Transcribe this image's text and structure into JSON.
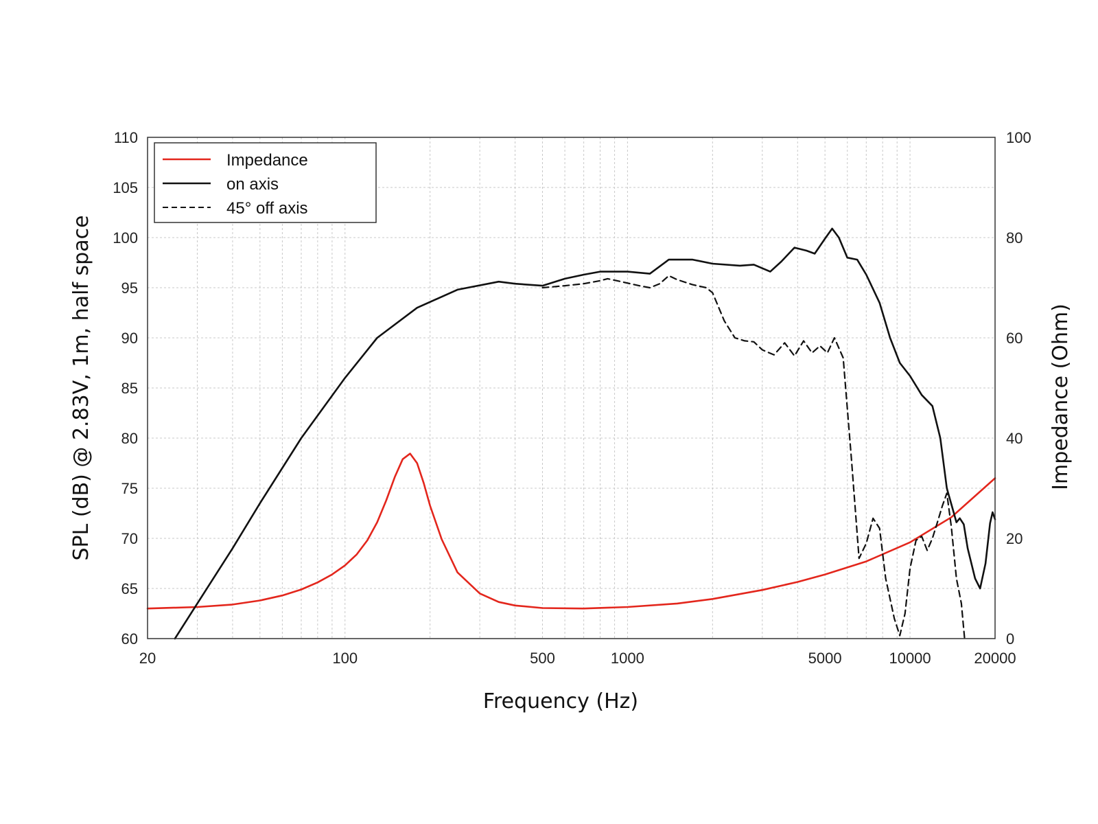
{
  "chart_data": {
    "type": "line",
    "xscale": "log",
    "xlim": [
      20,
      20000
    ],
    "ylim": [
      60,
      110
    ],
    "y2lim": [
      0,
      100
    ],
    "xlabel": "Frequency (Hz)",
    "ylabel": "SPL (dB) @ 2.83V, 1m, half space",
    "y2label": "Impedance (Ohm)",
    "xticks": [
      {
        "value": 20,
        "label": "20"
      },
      {
        "value": 100,
        "label": "100"
      },
      {
        "value": 500,
        "label": "500"
      },
      {
        "value": 1000,
        "label": "1000"
      },
      {
        "value": 5000,
        "label": "5000"
      },
      {
        "value": 10000,
        "label": "10000"
      },
      {
        "value": 20000,
        "label": "20000"
      }
    ],
    "yticks": [
      {
        "value": 60,
        "label": "60"
      },
      {
        "value": 65,
        "label": "65"
      },
      {
        "value": 70,
        "label": "70"
      },
      {
        "value": 75,
        "label": "75"
      },
      {
        "value": 80,
        "label": "80"
      },
      {
        "value": 85,
        "label": "85"
      },
      {
        "value": 90,
        "label": "90"
      },
      {
        "value": 95,
        "label": "95"
      },
      {
        "value": 100,
        "label": "100"
      },
      {
        "value": 105,
        "label": "105"
      },
      {
        "value": 110,
        "label": "110"
      }
    ],
    "y2ticks": [
      {
        "value": 0,
        "label": "0"
      },
      {
        "value": 20,
        "label": "20"
      },
      {
        "value": 40,
        "label": "40"
      },
      {
        "value": 60,
        "label": "60"
      },
      {
        "value": 80,
        "label": "80"
      },
      {
        "value": 100,
        "label": "100"
      }
    ],
    "grid": true,
    "legend_position": "top-left",
    "series": [
      {
        "name": "Impedance",
        "axis": "right",
        "color": "#e3261c",
        "dash": "solid",
        "points": [
          [
            20,
            6
          ],
          [
            30,
            6.3
          ],
          [
            40,
            6.8
          ],
          [
            50,
            7.6
          ],
          [
            60,
            8.6
          ],
          [
            70,
            9.8
          ],
          [
            80,
            11.2
          ],
          [
            90,
            12.8
          ],
          [
            100,
            14.6
          ],
          [
            110,
            16.8
          ],
          [
            120,
            19.6
          ],
          [
            130,
            23.2
          ],
          [
            140,
            27.6
          ],
          [
            150,
            32.2
          ],
          [
            160,
            35.8
          ],
          [
            170,
            36.9
          ],
          [
            180,
            35
          ],
          [
            190,
            31
          ],
          [
            200,
            26.5
          ],
          [
            220,
            19.8
          ],
          [
            250,
            13.2
          ],
          [
            300,
            9
          ],
          [
            350,
            7.3
          ],
          [
            400,
            6.6
          ],
          [
            500,
            6.1
          ],
          [
            700,
            6
          ],
          [
            1000,
            6.3
          ],
          [
            1500,
            7
          ],
          [
            2000,
            7.9
          ],
          [
            3000,
            9.7
          ],
          [
            4000,
            11.3
          ],
          [
            5000,
            12.8
          ],
          [
            7000,
            15.4
          ],
          [
            10000,
            19.2
          ],
          [
            14000,
            24.2
          ],
          [
            20000,
            32
          ]
        ]
      },
      {
        "name": "on axis",
        "axis": "left",
        "color": "#111111",
        "dash": "solid",
        "points": [
          [
            25,
            60
          ],
          [
            30,
            63.5
          ],
          [
            40,
            69
          ],
          [
            50,
            73.5
          ],
          [
            70,
            80
          ],
          [
            100,
            86
          ],
          [
            130,
            90
          ],
          [
            180,
            93
          ],
          [
            250,
            94.8
          ],
          [
            350,
            95.6
          ],
          [
            400,
            95.4
          ],
          [
            500,
            95.2
          ],
          [
            600,
            95.9
          ],
          [
            700,
            96.3
          ],
          [
            800,
            96.6
          ],
          [
            1000,
            96.6
          ],
          [
            1200,
            96.4
          ],
          [
            1400,
            97.8
          ],
          [
            1700,
            97.8
          ],
          [
            2000,
            97.4
          ],
          [
            2500,
            97.2
          ],
          [
            2800,
            97.3
          ],
          [
            3200,
            96.6
          ],
          [
            3500,
            97.6
          ],
          [
            3900,
            99
          ],
          [
            4300,
            98.7
          ],
          [
            4600,
            98.4
          ],
          [
            5000,
            99.9
          ],
          [
            5300,
            100.9
          ],
          [
            5600,
            100
          ],
          [
            6000,
            98
          ],
          [
            6500,
            97.8
          ],
          [
            7000,
            96.3
          ],
          [
            7800,
            93.5
          ],
          [
            8500,
            90
          ],
          [
            9200,
            87.5
          ],
          [
            10000,
            86.2
          ],
          [
            11000,
            84.3
          ],
          [
            12000,
            83.2
          ],
          [
            12800,
            80
          ],
          [
            13500,
            75
          ],
          [
            14200,
            72.8
          ],
          [
            14600,
            71.6
          ],
          [
            15000,
            72
          ],
          [
            15500,
            71.4
          ],
          [
            16000,
            69
          ],
          [
            17000,
            66
          ],
          [
            17700,
            65
          ],
          [
            18500,
            67.5
          ],
          [
            19200,
            71.5
          ],
          [
            19600,
            72.6
          ],
          [
            20000,
            71.9
          ]
        ]
      },
      {
        "name": "45° off axis",
        "axis": "left",
        "color": "#111111",
        "dash": "dashed",
        "points": [
          [
            500,
            95
          ],
          [
            600,
            95.2
          ],
          [
            700,
            95.4
          ],
          [
            800,
            95.7
          ],
          [
            850,
            95.9
          ],
          [
            950,
            95.6
          ],
          [
            1100,
            95.2
          ],
          [
            1200,
            95
          ],
          [
            1300,
            95.4
          ],
          [
            1400,
            96.2
          ],
          [
            1500,
            95.8
          ],
          [
            1700,
            95.3
          ],
          [
            1900,
            95
          ],
          [
            2000,
            94.5
          ],
          [
            2200,
            91.7
          ],
          [
            2400,
            90
          ],
          [
            2600,
            89.7
          ],
          [
            2800,
            89.6
          ],
          [
            3000,
            88.8
          ],
          [
            3300,
            88.3
          ],
          [
            3600,
            89.5
          ],
          [
            3900,
            88.2
          ],
          [
            4200,
            89.7
          ],
          [
            4500,
            88.5
          ],
          [
            4800,
            89.2
          ],
          [
            5100,
            88.5
          ],
          [
            5400,
            90
          ],
          [
            5800,
            88
          ],
          [
            6200,
            78
          ],
          [
            6600,
            68
          ],
          [
            7000,
            69.5
          ],
          [
            7400,
            72
          ],
          [
            7800,
            71
          ],
          [
            8200,
            66
          ],
          [
            8800,
            62
          ],
          [
            9200,
            60.3
          ],
          [
            9600,
            62.5
          ],
          [
            10000,
            67
          ],
          [
            10500,
            69.8
          ],
          [
            11000,
            70.2
          ],
          [
            11500,
            68.8
          ],
          [
            12000,
            70
          ],
          [
            12500,
            71.6
          ],
          [
            13000,
            73.2
          ],
          [
            13500,
            74.5
          ],
          [
            14000,
            71.2
          ],
          [
            14600,
            66
          ],
          [
            15200,
            63.5
          ],
          [
            15600,
            60
          ]
        ]
      }
    ]
  },
  "legend": {
    "items": [
      {
        "label": "Impedance",
        "color": "#e3261c",
        "dash": "solid"
      },
      {
        "label": "on axis",
        "color": "#111111",
        "dash": "solid"
      },
      {
        "label": "45° off axis",
        "color": "#111111",
        "dash": "dashed"
      }
    ]
  }
}
